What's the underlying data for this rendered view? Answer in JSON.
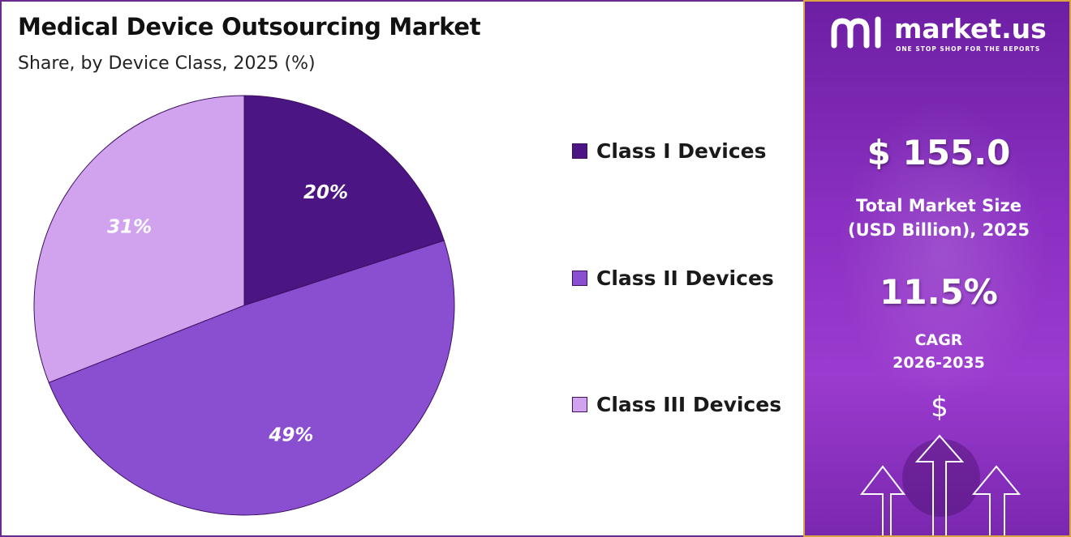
{
  "chart_data": {
    "type": "pie",
    "title": "Medical Device Outsourcing Market",
    "subtitle": "Share, by Device Class, 2025 (%)",
    "categories": [
      "Class I Devices",
      "Class II Devices",
      "Class III Devices"
    ],
    "values": [
      20,
      49,
      31
    ],
    "value_labels": [
      "20%",
      "49%",
      "31%"
    ],
    "colors": [
      "#4b1583",
      "#8a4fd1",
      "#d1a3ef"
    ],
    "start_angle_deg": 0,
    "direction": "clockwise",
    "legend_position": "right"
  },
  "side_panel": {
    "logo_name": "market.us",
    "logo_tagline": "ONE STOP SHOP FOR THE REPORTS",
    "logo_icon": "market-us-logo-icon",
    "market_size_value": "$ 155.0",
    "market_size_label_1": "Total Market Size",
    "market_size_label_2": "(USD Billion), 2025",
    "cagr_value": "11.5%",
    "cagr_label": "CAGR",
    "cagr_period": "2026-2035",
    "currency_symbol": "$",
    "decor_icon": "growth-arrows-icon",
    "accent_color": "#8a2fc2",
    "border_color": "#d9a441"
  }
}
